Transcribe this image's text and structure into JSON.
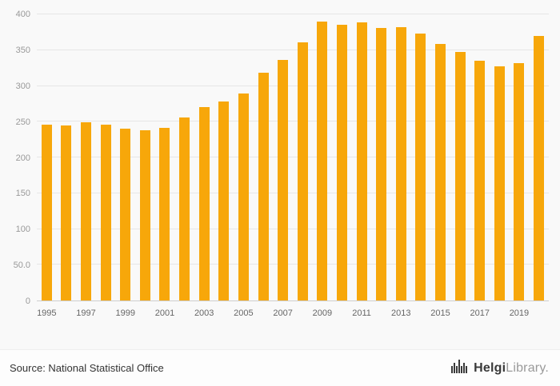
{
  "chart_data": {
    "type": "bar",
    "categories": [
      "1995",
      "1996",
      "1997",
      "1998",
      "1999",
      "2000",
      "2001",
      "2002",
      "2003",
      "2004",
      "2005",
      "2006",
      "2007",
      "2008",
      "2009",
      "2010",
      "2011",
      "2012",
      "2013",
      "2014",
      "2015",
      "2016",
      "2017",
      "2018",
      "2019",
      "2020"
    ],
    "values": [
      246,
      245,
      249,
      246,
      240,
      238,
      241,
      256,
      270,
      278,
      289,
      319,
      336,
      361,
      390,
      386,
      389,
      381,
      382,
      373,
      359,
      347,
      335,
      327,
      332,
      370
    ],
    "title": "",
    "xlabel": "",
    "ylabel": "",
    "ylim": [
      0,
      400
    ],
    "yticks": [
      0,
      50,
      100,
      150,
      200,
      250,
      300,
      350,
      400
    ],
    "ytick_labels": [
      "0",
      "50.0",
      "100",
      "150",
      "200",
      "250",
      "300",
      "350",
      "400"
    ],
    "xtick_labels": [
      "1995",
      "1997",
      "1999",
      "2001",
      "2003",
      "2005",
      "2007",
      "2009",
      "2011",
      "2013",
      "2015",
      "2017",
      "2019"
    ],
    "grid": true,
    "legend_position": "none"
  },
  "colors": {
    "bar": "#F7A70A",
    "grid": "#e6e6e6",
    "axis_text": "#999999",
    "background": "#f9f9f9"
  },
  "footer": {
    "source": "Source: National Statistical Office",
    "logo_bold": "Helgi",
    "logo_light": "Library."
  }
}
